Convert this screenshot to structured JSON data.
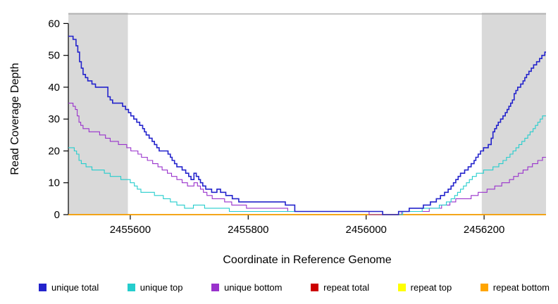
{
  "chart_data": {
    "type": "line",
    "step": true,
    "title": "",
    "xlabel": "Coordinate in Reference Genome",
    "ylabel": "Read Coverage Depth",
    "xlim": [
      2455495,
      2456305
    ],
    "ylim": [
      0,
      63.4
    ],
    "x_ticks": [
      2455600,
      2455800,
      2456000,
      2456200
    ],
    "y_ticks": [
      0,
      10,
      20,
      30,
      40,
      50,
      60
    ],
    "background": "#FFFFFF",
    "axis_color": "#000000",
    "grid": false,
    "legend_position": "bottom-horizontal",
    "shaded_regions": [
      {
        "x0": 2455495,
        "x1": 2455596,
        "color": "#D9D9D9"
      },
      {
        "x0": 2456196,
        "x1": 2456305,
        "color": "#D9D9D9"
      }
    ],
    "top_line": {
      "y": 63.0,
      "color": "#ABABAB"
    },
    "series": [
      {
        "name": "unique total",
        "color": "#2323CC",
        "width": 1.6,
        "z": 6,
        "points": [
          [
            2455495,
            56
          ],
          [
            2455503,
            55
          ],
          [
            2455508,
            53
          ],
          [
            2455511,
            51
          ],
          [
            2455514,
            48
          ],
          [
            2455517,
            46
          ],
          [
            2455520,
            44
          ],
          [
            2455524,
            43
          ],
          [
            2455528,
            42
          ],
          [
            2455535,
            41
          ],
          [
            2455541,
            40
          ],
          [
            2455562,
            37
          ],
          [
            2455566,
            36
          ],
          [
            2455570,
            35
          ],
          [
            2455587,
            34
          ],
          [
            2455592,
            33
          ],
          [
            2455597,
            32
          ],
          [
            2455601,
            31
          ],
          [
            2455606,
            30
          ],
          [
            2455611,
            29
          ],
          [
            2455616,
            28
          ],
          [
            2455621,
            27
          ],
          [
            2455624,
            26
          ],
          [
            2455627,
            25
          ],
          [
            2455632,
            24
          ],
          [
            2455637,
            23
          ],
          [
            2455641,
            22
          ],
          [
            2455645,
            21
          ],
          [
            2455649,
            20
          ],
          [
            2455664,
            19
          ],
          [
            2455668,
            18
          ],
          [
            2455671,
            17
          ],
          [
            2455675,
            16
          ],
          [
            2455679,
            15
          ],
          [
            2455688,
            14
          ],
          [
            2455694,
            13
          ],
          [
            2455699,
            12
          ],
          [
            2455703,
            11
          ],
          [
            2455708,
            13
          ],
          [
            2455712,
            12
          ],
          [
            2455716,
            11
          ],
          [
            2455719,
            10
          ],
          [
            2455723,
            9
          ],
          [
            2455728,
            8
          ],
          [
            2455738,
            7
          ],
          [
            2455747,
            8
          ],
          [
            2455753,
            7
          ],
          [
            2455762,
            6
          ],
          [
            2455773,
            5
          ],
          [
            2455784,
            4
          ],
          [
            2455863,
            3
          ],
          [
            2455879,
            1
          ],
          [
            2456028,
            0
          ],
          [
            2456055,
            1
          ],
          [
            2456073,
            2
          ],
          [
            2456097,
            3
          ],
          [
            2456109,
            4
          ],
          [
            2456119,
            5
          ],
          [
            2456126,
            6
          ],
          [
            2456133,
            7
          ],
          [
            2456139,
            8
          ],
          [
            2456144,
            9
          ],
          [
            2456148,
            10
          ],
          [
            2456152,
            11
          ],
          [
            2456156,
            12
          ],
          [
            2456160,
            13
          ],
          [
            2456167,
            14
          ],
          [
            2456173,
            15
          ],
          [
            2456178,
            16
          ],
          [
            2456183,
            17
          ],
          [
            2456186,
            18
          ],
          [
            2456190,
            19
          ],
          [
            2456194,
            20
          ],
          [
            2456199,
            21
          ],
          [
            2456207,
            22
          ],
          [
            2456212,
            24
          ],
          [
            2456215,
            26
          ],
          [
            2456218,
            27
          ],
          [
            2456221,
            28
          ],
          [
            2456224,
            29
          ],
          [
            2456228,
            30
          ],
          [
            2456232,
            31
          ],
          [
            2456236,
            32
          ],
          [
            2456239,
            33
          ],
          [
            2456242,
            34
          ],
          [
            2456245,
            35
          ],
          [
            2456248,
            36
          ],
          [
            2456251,
            38
          ],
          [
            2456254,
            39
          ],
          [
            2456257,
            40
          ],
          [
            2456262,
            41
          ],
          [
            2456266,
            42
          ],
          [
            2456269,
            43
          ],
          [
            2456272,
            44
          ],
          [
            2456276,
            45
          ],
          [
            2456280,
            46
          ],
          [
            2456284,
            47
          ],
          [
            2456289,
            48
          ],
          [
            2456294,
            49
          ],
          [
            2456298,
            50
          ],
          [
            2456303,
            51
          ]
        ]
      },
      {
        "name": "unique top",
        "color": "#25CDCD",
        "width": 1.1,
        "z": 5,
        "points": [
          [
            2455495,
            21
          ],
          [
            2455505,
            20
          ],
          [
            2455509,
            19
          ],
          [
            2455513,
            17
          ],
          [
            2455517,
            16
          ],
          [
            2455525,
            15
          ],
          [
            2455535,
            14
          ],
          [
            2455556,
            13
          ],
          [
            2455566,
            12
          ],
          [
            2455584,
            11
          ],
          [
            2455600,
            10
          ],
          [
            2455607,
            9
          ],
          [
            2455612,
            8
          ],
          [
            2455618,
            7
          ],
          [
            2455641,
            6
          ],
          [
            2455656,
            5
          ],
          [
            2455668,
            4
          ],
          [
            2455679,
            3
          ],
          [
            2455692,
            2
          ],
          [
            2455707,
            3
          ],
          [
            2455726,
            2
          ],
          [
            2455768,
            1
          ],
          [
            2456028,
            0
          ],
          [
            2456062,
            1
          ],
          [
            2456095,
            2
          ],
          [
            2456124,
            3
          ],
          [
            2456136,
            4
          ],
          [
            2456144,
            5
          ],
          [
            2456150,
            6
          ],
          [
            2456155,
            7
          ],
          [
            2456160,
            8
          ],
          [
            2456165,
            9
          ],
          [
            2456170,
            10
          ],
          [
            2456175,
            11
          ],
          [
            2456180,
            12
          ],
          [
            2456187,
            13
          ],
          [
            2456199,
            14
          ],
          [
            2456215,
            15
          ],
          [
            2456225,
            16
          ],
          [
            2456232,
            17
          ],
          [
            2456238,
            18
          ],
          [
            2456244,
            19
          ],
          [
            2456249,
            20
          ],
          [
            2456254,
            21
          ],
          [
            2456259,
            22
          ],
          [
            2456264,
            23
          ],
          [
            2456269,
            24
          ],
          [
            2456274,
            25
          ],
          [
            2456278,
            26
          ],
          [
            2456283,
            27
          ],
          [
            2456287,
            28
          ],
          [
            2456291,
            29
          ],
          [
            2456295,
            30
          ],
          [
            2456299,
            31
          ]
        ]
      },
      {
        "name": "unique bottom",
        "color": "#9932CC",
        "width": 1.1,
        "z": 4,
        "points": [
          [
            2455495,
            35
          ],
          [
            2455503,
            34
          ],
          [
            2455507,
            33
          ],
          [
            2455510,
            31
          ],
          [
            2455513,
            29
          ],
          [
            2455516,
            28
          ],
          [
            2455520,
            27
          ],
          [
            2455530,
            26
          ],
          [
            2455548,
            25
          ],
          [
            2455558,
            24
          ],
          [
            2455566,
            23
          ],
          [
            2455580,
            22
          ],
          [
            2455594,
            21
          ],
          [
            2455601,
            20
          ],
          [
            2455613,
            19
          ],
          [
            2455619,
            18
          ],
          [
            2455629,
            17
          ],
          [
            2455638,
            16
          ],
          [
            2455647,
            15
          ],
          [
            2455654,
            14
          ],
          [
            2455663,
            13
          ],
          [
            2455670,
            12
          ],
          [
            2455679,
            11
          ],
          [
            2455688,
            10
          ],
          [
            2455697,
            9
          ],
          [
            2455708,
            10
          ],
          [
            2455714,
            9
          ],
          [
            2455719,
            8
          ],
          [
            2455724,
            7
          ],
          [
            2455730,
            6
          ],
          [
            2455739,
            5
          ],
          [
            2455760,
            4
          ],
          [
            2455772,
            3
          ],
          [
            2455797,
            2
          ],
          [
            2455867,
            1
          ],
          [
            2456005,
            0
          ],
          [
            2456060,
            1
          ],
          [
            2456107,
            2
          ],
          [
            2456128,
            3
          ],
          [
            2456142,
            4
          ],
          [
            2456152,
            5
          ],
          [
            2456178,
            6
          ],
          [
            2456190,
            7
          ],
          [
            2456205,
            8
          ],
          [
            2456218,
            9
          ],
          [
            2456230,
            10
          ],
          [
            2456243,
            11
          ],
          [
            2456250,
            12
          ],
          [
            2456258,
            13
          ],
          [
            2456266,
            14
          ],
          [
            2456274,
            15
          ],
          [
            2456282,
            16
          ],
          [
            2456291,
            17
          ],
          [
            2456299,
            18
          ]
        ]
      },
      {
        "name": "repeat total",
        "color": "#CC0000",
        "width": 1.2,
        "z": 1,
        "points": [
          [
            2455495,
            0
          ]
        ]
      },
      {
        "name": "repeat top",
        "color": "#FFFF00",
        "width": 1.2,
        "z": 2,
        "points": [
          [
            2455495,
            0
          ]
        ]
      },
      {
        "name": "repeat bottom",
        "color": "#FFA500",
        "width": 1.4,
        "z": 3,
        "points": [
          [
            2455495,
            0
          ]
        ]
      }
    ]
  }
}
